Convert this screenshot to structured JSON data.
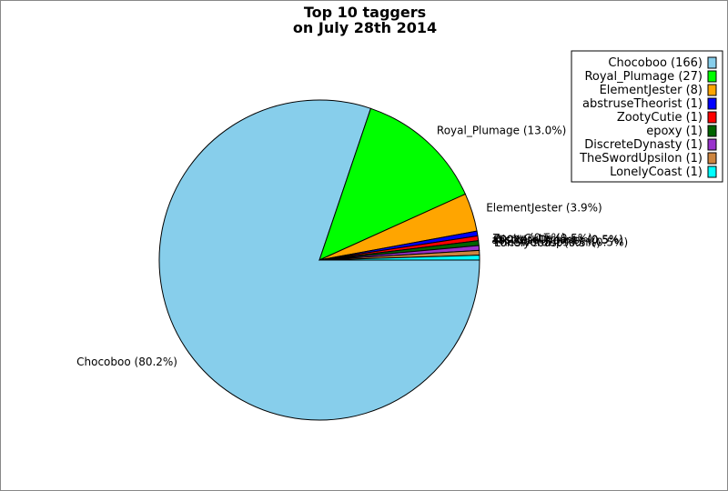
{
  "chart_data": {
    "type": "pie",
    "title": "Top 10 taggers",
    "subtitle": "on July 28th 2014",
    "legend_position": "top-right",
    "slices": [
      {
        "name": "Chocoboo",
        "value": 166,
        "percent_label": "80.2%",
        "color": "#87CEEB"
      },
      {
        "name": "Royal_Plumage",
        "value": 27,
        "percent_label": "13.0%",
        "color": "#00FF00"
      },
      {
        "name": "ElementJester",
        "value": 8,
        "percent_label": "3.9%",
        "color": "#FFA500"
      },
      {
        "name": "abstruseTheorist",
        "value": 1,
        "percent_label": "0.5%",
        "color": "#0000FF"
      },
      {
        "name": "ZootyCutie",
        "value": 1,
        "percent_label": "0.5%",
        "color": "#FF0000"
      },
      {
        "name": "epoxy",
        "value": 1,
        "percent_label": "0.5%",
        "color": "#006400"
      },
      {
        "name": "DiscreteDynasty",
        "value": 1,
        "percent_label": "0.5%",
        "color": "#9932CC"
      },
      {
        "name": "TheSwordUpsilon",
        "value": 1,
        "percent_label": "0.5%",
        "color": "#CD853F"
      },
      {
        "name": "LonelyCoast",
        "value": 1,
        "percent_label": "0.5%",
        "color": "#00FFFF"
      }
    ]
  }
}
